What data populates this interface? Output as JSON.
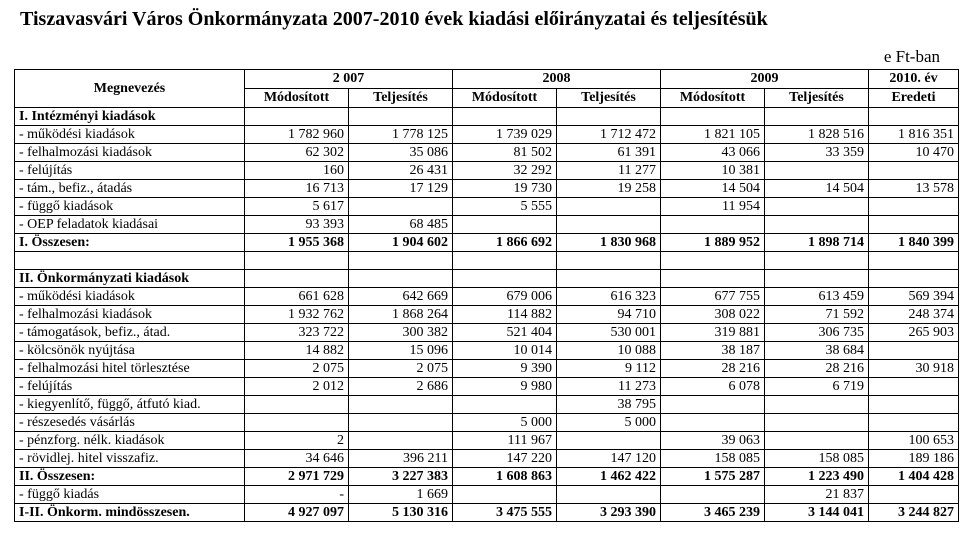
{
  "title": "Tiszavasvári Város Önkormányzata 2007-2010 évek kiadási előirányzatai és teljesítésük",
  "unit": "e Ft-ban",
  "header": {
    "corner": "Megnevezés",
    "years": [
      "2 007",
      "2008",
      "2009",
      "2010. év"
    ],
    "sub": [
      "Módosított",
      "Teljesítés",
      "Módosított",
      "Teljesítés",
      "Módosított",
      "Teljesítés",
      "Eredeti"
    ]
  },
  "rows": [
    {
      "label": "I. Intézményi kiadások",
      "bold": true,
      "vals": [
        "",
        "",
        "",
        "",
        "",
        "",
        ""
      ]
    },
    {
      "label": " - működési kiadások",
      "vals": [
        "1 782 960",
        "1 778 125",
        "1 739 029",
        "1 712 472",
        "1 821 105",
        "1 828 516",
        "1 816 351"
      ]
    },
    {
      "label": " - felhalmozási kiadások",
      "vals": [
        "62 302",
        "35 086",
        "81 502",
        "61 391",
        "43 066",
        "33 359",
        "10 470"
      ]
    },
    {
      "label": " - felújítás",
      "vals": [
        "160",
        "26 431",
        "32 292",
        "11 277",
        "10 381",
        "",
        ""
      ]
    },
    {
      "label": " - tám., befiz., átadás",
      "vals": [
        "16 713",
        "17 129",
        "19 730",
        "19 258",
        "14 504",
        "14 504",
        "13 578"
      ]
    },
    {
      "label": " - függő kiadások",
      "vals": [
        "5 617",
        "",
        "5 555",
        "",
        "11 954",
        "",
        ""
      ]
    },
    {
      "label": "  - OEP feladatok kiadásai",
      "vals": [
        "93 393",
        "68 485",
        "",
        "",
        "",
        "",
        ""
      ]
    },
    {
      "label": "I. Összesen:",
      "bold": true,
      "vals": [
        "1 955 368",
        "1 904 602",
        "1 866 692",
        "1 830 968",
        "1 889 952",
        "1 898 714",
        "1 840 399"
      ]
    },
    {
      "label": "",
      "vals": [
        "",
        "",
        "",
        "",
        "",
        "",
        ""
      ]
    },
    {
      "label": "II. Önkormányzati kiadások",
      "bold": true,
      "vals": [
        "",
        "",
        "",
        "",
        "",
        "",
        ""
      ]
    },
    {
      "label": " - működési kiadások",
      "vals": [
        "661 628",
        "642 669",
        "679 006",
        "616 323",
        "677 755",
        "613 459",
        "569 394"
      ]
    },
    {
      "label": " - felhalmozási kiadások",
      "vals": [
        "1 932 762",
        "1 868 264",
        "114 882",
        "94 710",
        "308 022",
        "71 592",
        "248 374"
      ]
    },
    {
      "label": " - támogatások, befiz., átad.",
      "vals": [
        "323 722",
        "300 382",
        "521 404",
        "530 001",
        "319 881",
        "306 735",
        "265 903"
      ]
    },
    {
      "label": " - kölcsönök nyújtása",
      "vals": [
        "14 882",
        "15 096",
        "10 014",
        "10 088",
        "38 187",
        "38 684",
        ""
      ]
    },
    {
      "label": " - felhalmozási hitel törlesztése",
      "vals": [
        "2 075",
        "2 075",
        "9 390",
        "9 112",
        "28 216",
        "28 216",
        "30 918"
      ]
    },
    {
      "label": " - felújítás",
      "vals": [
        "2 012",
        "2 686",
        "9 980",
        "11 273",
        "6 078",
        "6 719",
        ""
      ]
    },
    {
      "label": " - kiegyenlítő, függő, átfutó kiad.",
      "vals": [
        "",
        "",
        "",
        "38 795",
        "",
        "",
        ""
      ]
    },
    {
      "label": " - részesedés vásárlás",
      "vals": [
        "",
        "",
        "5 000",
        "5 000",
        "",
        "",
        ""
      ]
    },
    {
      "label": " - pénzforg. nélk. kiadások",
      "vals": [
        "2",
        "",
        "111 967",
        "",
        "39 063",
        "",
        "100 653"
      ]
    },
    {
      "label": " - rövidlej. hitel visszafiz.",
      "vals": [
        "34 646",
        "396 211",
        "147 220",
        "147 120",
        "158 085",
        "158 085",
        "189 186"
      ]
    },
    {
      "label": "II. Összesen:",
      "bold": true,
      "vals": [
        "2 971 729",
        "3 227 383",
        "1 608 863",
        "1 462 422",
        "1 575 287",
        "1 223 490",
        "1 404 428"
      ]
    },
    {
      "label": " - függő kiadás",
      "vals": [
        "-",
        "1 669",
        "",
        "",
        "",
        "21 837",
        ""
      ]
    },
    {
      "label": "I-II. Önkorm. mindösszesen.",
      "bold": true,
      "vals": [
        "4 927 097",
        "5 130 316",
        "3 475 555",
        "3 293 390",
        "3 465 239",
        "3 144 041",
        "3 244 827"
      ]
    }
  ]
}
